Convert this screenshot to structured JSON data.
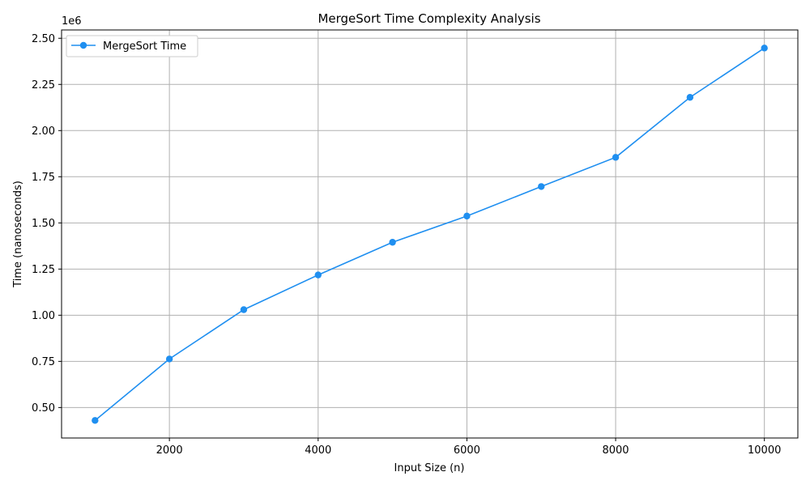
{
  "chart_data": {
    "type": "line",
    "title": "MergeSort Time Complexity Analysis",
    "xlabel": "Input Size (n)",
    "ylabel": "Time (nanoseconds)",
    "y_offset_label": "1e6",
    "xlim": [
      550,
      10450
    ],
    "ylim": [
      335000,
      2545000
    ],
    "x_ticks": [
      2000,
      4000,
      6000,
      8000,
      10000
    ],
    "x_tick_labels": [
      "2000",
      "4000",
      "6000",
      "8000",
      "10000"
    ],
    "y_ticks": [
      500000,
      750000,
      1000000,
      1250000,
      1500000,
      1750000,
      2000000,
      2250000,
      2500000
    ],
    "y_tick_labels": [
      "0.50",
      "0.75",
      "1.00",
      "1.25",
      "1.50",
      "1.75",
      "2.00",
      "2.25",
      "2.50"
    ],
    "grid": true,
    "legend_position": "top-left",
    "series": [
      {
        "name": "MergeSort Time",
        "color": "#1f8ff0",
        "marker": "circle",
        "x": [
          1000,
          2000,
          3000,
          4000,
          5000,
          6000,
          7000,
          8000,
          9000,
          10000
        ],
        "y": [
          430000,
          763000,
          1030000,
          1218000,
          1395000,
          1537000,
          1697000,
          1855000,
          2180000,
          2447000
        ]
      }
    ]
  }
}
